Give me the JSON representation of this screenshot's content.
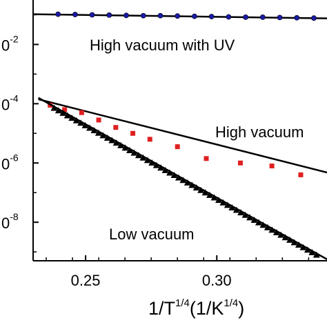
{
  "chart_data": {
    "type": "scatter",
    "xlabel": "1/T",
    "xlabel_power": "1/4",
    "xlabel_units_prefix": "(1/K",
    "xlabel_units_power": "1/4",
    "xlabel_units_suffix": ")",
    "ylabel": "",
    "x_ticks": [
      0.25,
      0.3
    ],
    "x_tick_labels": [
      "0.25",
      "0.30"
    ],
    "xlim": [
      0.23,
      0.342
    ],
    "y_scale": "log",
    "ylim_exponent": [
      -9.3,
      -0.5
    ],
    "y_ticks": [
      {
        "exp": -2,
        "base": "0",
        "power": "-2"
      },
      {
        "exp": -4,
        "base": "0",
        "power": "-4"
      },
      {
        "exp": -6,
        "base": "0",
        "power": "-6"
      },
      {
        "exp": -8,
        "base": "0",
        "power": "-8"
      }
    ],
    "grid": false,
    "annotations": [
      {
        "text": "High vacuum with UV",
        "series": "high-vacuum-uv"
      },
      {
        "text": "High vacuum",
        "series": "high-vacuum"
      },
      {
        "text": "Low vacuum",
        "series": "low-vacuum"
      }
    ],
    "series": [
      {
        "key": "high-vacuum-uv",
        "color": "#1a1aa6",
        "marker": "circle",
        "fit": [
          [
            0.23,
            -0.98
          ],
          [
            0.342,
            -1.12
          ]
        ],
        "points_x": [
          0.2395,
          0.246,
          0.2525,
          0.259,
          0.2655,
          0.272,
          0.2785,
          0.285,
          0.2915,
          0.298,
          0.3045,
          0.311,
          0.3175,
          0.324,
          0.3305,
          0.337
        ],
        "points_y": [
          -0.98,
          -0.99,
          -1.0,
          -1.01,
          -1.02,
          -1.03,
          -1.03,
          -1.04,
          -1.05,
          -1.06,
          -1.07,
          -1.08,
          -1.08,
          -1.09,
          -1.1,
          -1.11
        ]
      },
      {
        "key": "high-vacuum",
        "color": "#e02020",
        "marker": "square",
        "fit": [
          [
            0.232,
            -3.85
          ],
          [
            0.342,
            -6.32
          ]
        ],
        "points_x": [
          0.2365,
          0.242,
          0.2485,
          0.255,
          0.2615,
          0.268,
          0.2745,
          0.285,
          0.296,
          0.309,
          0.321,
          0.332
        ],
        "points_y": [
          -4.05,
          -4.2,
          -4.3,
          -4.55,
          -4.8,
          -5.0,
          -5.2,
          -5.45,
          -5.85,
          -6.0,
          -6.1,
          -6.4
        ]
      },
      {
        "key": "low-vacuum",
        "color": "#000000",
        "marker": "triangle",
        "fit": [
          [
            0.232,
            -3.8
          ],
          [
            0.342,
            -9.25
          ]
        ],
        "points_x_range": [
          0.238,
          0.338
        ],
        "points_count": 60,
        "points_offset": -0.05
      }
    ]
  }
}
